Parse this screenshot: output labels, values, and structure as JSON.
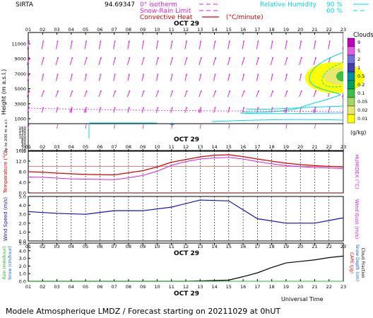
{
  "header": {
    "station": "SIRTA",
    "coords": "94.69347",
    "legend_isotherm": "0° isotherm",
    "legend_snow": "Snow-Rain Limit",
    "legend_conv": "Convective Heat",
    "legend_unit": "(°C/minute)",
    "rh_label": "Relative Humidity",
    "rh_90": "90 %",
    "rh_60": "60 %"
  },
  "colors": {
    "temperature": "#e00000",
    "humidex": "#e020e0",
    "wind": "#1010c0",
    "rain": "#20c020",
    "snow": "#1060e0",
    "cloud": "#000000",
    "humidity": "#00d8e8",
    "arrow": "#e020e0"
  },
  "hours": [
    "01",
    "02",
    "03",
    "04",
    "05",
    "06",
    "07",
    "08",
    "09",
    "10",
    "11",
    "12",
    "13",
    "14",
    "15",
    "16",
    "17",
    "18",
    "19",
    "20",
    "21",
    "22",
    "23"
  ],
  "date_label": "OCT 29",
  "upper_panel": {
    "ylabel": "Height (m a.s.l.)",
    "ylabel2": "Up to 200 m a.s.l.",
    "ticks_high": [
      "11000",
      "9000",
      "7000",
      "5000",
      "3000",
      "1000"
    ],
    "ticks_low": [
      "160",
      "140",
      "120",
      "100",
      "80",
      "60",
      "40",
      "20",
      "10"
    ]
  },
  "cloud_scale": {
    "title": "Clouds",
    "unit": "(g/kg)",
    "labels": [
      "9",
      "5",
      "2",
      "1",
      "0.5",
      "0.2",
      "0.1",
      "0.05",
      "0.02",
      "0.01"
    ],
    "colors": [
      "#c000c0",
      "#e060e0",
      "#7070e0",
      "#4040b0",
      "#0090a0",
      "#00a060",
      "#40c040",
      "#a0d860",
      "#e8e870",
      "#ffff00"
    ]
  },
  "footer": {
    "xlabel": "Universal Time",
    "caption": "Modele Atmospherique LMDZ / Forecast starting on 20211029 at 0hUT"
  },
  "chart_data": [
    {
      "type": "line",
      "panel": "temperature",
      "ylabel": "Temperature (°C)",
      "ylabel_right": "HUMIDEX (°C)",
      "yticks": [
        "16.0",
        "12.0",
        "8.0",
        "4.0",
        "0.0"
      ],
      "ylim": [
        0,
        16
      ],
      "x": [
        1,
        2,
        3,
        4,
        5,
        6,
        7,
        8,
        9,
        10,
        11,
        12,
        13,
        14,
        15,
        16,
        17,
        18,
        19,
        20,
        21,
        22,
        23
      ],
      "series": [
        {
          "values": [
            8.0,
            7.8,
            7.5,
            7.2,
            7.0,
            6.9,
            6.8,
            7.6,
            8.4,
            9.8,
            11.6,
            12.6,
            13.6,
            14.2,
            14.4,
            13.7,
            12.8,
            12.0,
            11.2,
            10.7,
            10.3,
            10.0,
            9.8
          ]
        },
        {
          "values": [
            6.0,
            5.9,
            5.6,
            5.3,
            5.2,
            5.1,
            5.0,
            5.7,
            6.6,
            8.2,
            10.4,
            11.8,
            12.8,
            13.2,
            13.4,
            12.8,
            11.8,
            11.0,
            10.3,
            9.9,
            9.6,
            9.4,
            9.2
          ]
        }
      ]
    },
    {
      "type": "line",
      "panel": "wind",
      "ylabel": "Wind Speed (m/s)",
      "ylabel_right": "Wind Gust (m/s)",
      "yticks": [
        "5.0",
        "4.0",
        "3.0",
        "2.0",
        "1.0",
        "0.0"
      ],
      "ylim": [
        0,
        5
      ],
      "x": [
        1,
        3,
        5,
        7,
        9,
        11,
        13,
        15,
        17,
        19,
        21,
        23
      ],
      "series": [
        {
          "values": [
            3.3,
            3.1,
            3.0,
            3.4,
            3.4,
            3.8,
            4.6,
            4.5,
            2.5,
            2.0,
            2.0,
            2.6
          ]
        }
      ]
    },
    {
      "type": "line",
      "panel": "precipitation",
      "ylabel": "Rain (mm/hour)",
      "ylabel2": "Snow (cm/hour)",
      "ylabel_right": "CAPE (J/g)",
      "ylabel_right2": "Snow Depth (cm)",
      "ylabel_right3": "Cloud Fraction",
      "yticks": [
        "5.0",
        "4.0",
        "3.0",
        "2.0",
        "1.0",
        "0.0"
      ],
      "ylim": [
        0,
        5
      ],
      "x": [
        1,
        2,
        3,
        4,
        5,
        6,
        7,
        8,
        9,
        10,
        11,
        12,
        13,
        14,
        15,
        16,
        17,
        18,
        19,
        20,
        21,
        22,
        23
      ],
      "series": [
        {
          "values": [
            0,
            0,
            0,
            0,
            0,
            0,
            0,
            0,
            0,
            0,
            0,
            0,
            0.05,
            0.1,
            0.15,
            0.6,
            1.1,
            1.8,
            2.4,
            2.6,
            2.8,
            3.1,
            3.3
          ]
        }
      ]
    }
  ]
}
